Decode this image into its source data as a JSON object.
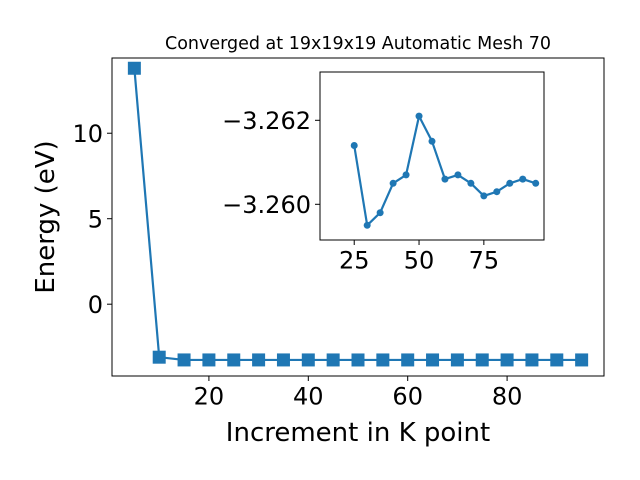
{
  "chart_data": [
    {
      "type": "line",
      "title": "Converged at 19x19x19 Automatic Mesh 70",
      "xlabel": "Increment in K point",
      "ylabel": "Energy (eV)",
      "xlim": [
        0.5,
        99.5
      ],
      "ylim": [
        -4.2,
        14.4
      ],
      "x_ticks": [
        20,
        40,
        60,
        80
      ],
      "y_ticks": [
        0,
        5,
        10
      ],
      "x_tick_labels": [
        "20",
        "40",
        "60",
        "80"
      ],
      "y_tick_labels": [
        "0",
        "5",
        "10"
      ],
      "marker": "square",
      "color": "#1f77b4",
      "grid": false,
      "legend": "none",
      "series": [
        {
          "x": [
            5,
            10,
            15,
            20,
            25,
            30,
            35,
            40,
            45,
            50,
            55,
            60,
            65,
            70,
            75,
            80,
            85,
            90,
            95
          ],
          "y": [
            13.8,
            -3.1,
            -3.2601,
            -3.2605,
            -3.2614,
            -3.2595,
            -3.2598,
            -3.2605,
            -3.2607,
            -3.2621,
            -3.2615,
            -3.2606,
            -3.2607,
            -3.2605,
            -3.2602,
            -3.2603,
            -3.2605,
            -3.2606,
            -3.2605
          ]
        }
      ]
    },
    {
      "type": "line",
      "title": "",
      "xlabel": "",
      "ylabel": "",
      "xlim": [
        11.8,
        98.2
      ],
      "ylim": [
        -3.25915,
        -3.26315
      ],
      "x_ticks": [
        25,
        50,
        75
      ],
      "y_ticks": [
        -3.26,
        -3.262
      ],
      "x_tick_labels": [
        "25",
        "50",
        "75"
      ],
      "y_tick_labels": [
        "−3.260",
        "−3.262"
      ],
      "marker": "circle",
      "color": "#1f77b4",
      "grid": false,
      "legend": "none",
      "series": [
        {
          "x": [
            25,
            30,
            35,
            40,
            45,
            50,
            55,
            60,
            65,
            70,
            75,
            80,
            85,
            90,
            95
          ],
          "y": [
            -3.2614,
            -3.2595,
            -3.2598,
            -3.2605,
            -3.2607,
            -3.2621,
            -3.2615,
            -3.2606,
            -3.2607,
            -3.2605,
            -3.2602,
            -3.2603,
            -3.2605,
            -3.2606,
            -3.2605
          ]
        }
      ]
    }
  ]
}
